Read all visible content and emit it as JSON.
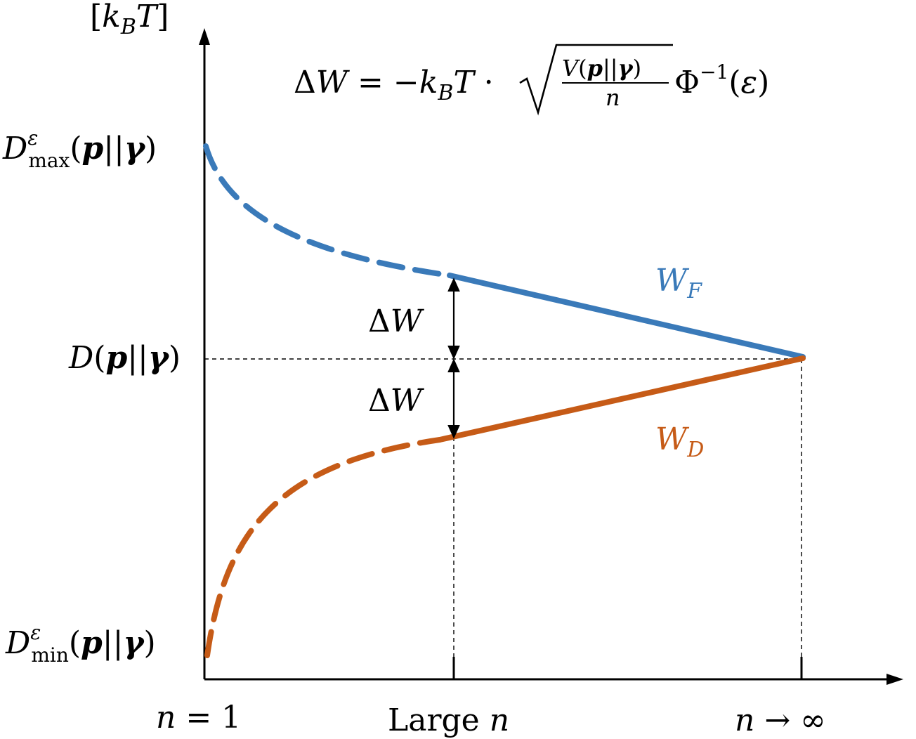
{
  "axes": {
    "y_unit_label": "[k_B T]",
    "x_ticks": [
      "n = 1",
      "Large n",
      "n → ∞"
    ],
    "y_ticks": [
      "D^ε_max(p||γ)",
      "D(p||γ)",
      "D^ε_min(p||γ)"
    ]
  },
  "formula": "ΔW = −k_B T · √(V(p||γ)/n) Φ⁻¹(ε)",
  "annotations": {
    "delta_upper": "ΔW",
    "delta_lower": "ΔW"
  },
  "curves": [
    {
      "label": "W_F",
      "color": "#3a7ab9"
    },
    {
      "label": "W_D",
      "color": "#c65b17"
    }
  ]
}
